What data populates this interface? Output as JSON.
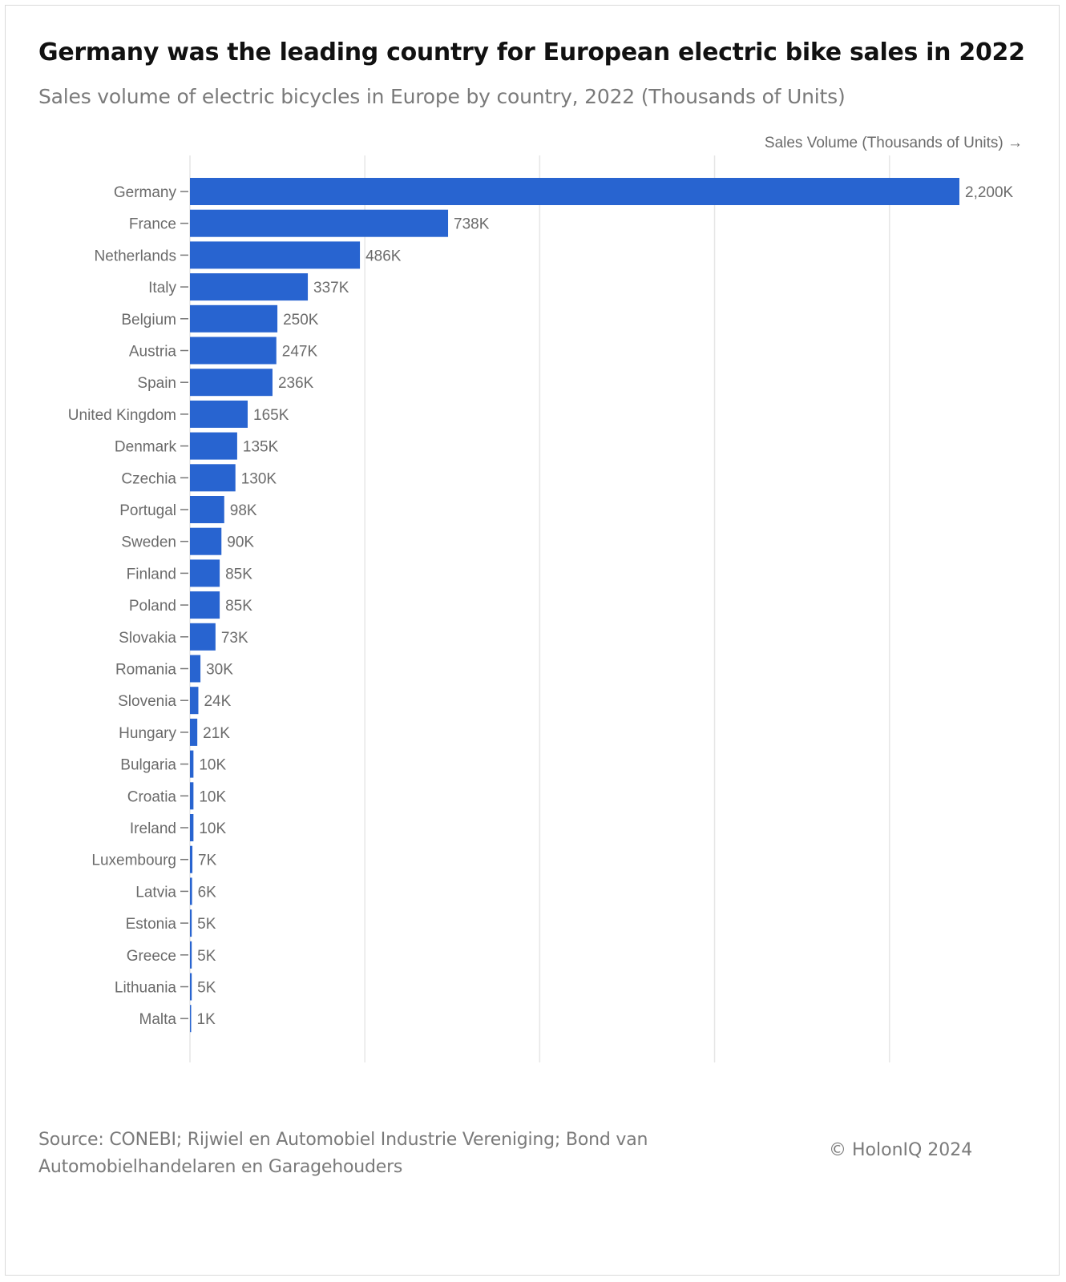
{
  "title": "Germany was the leading country for European electric bike sales in 2022",
  "subtitle": "Sales volume of electric bicycles in Europe by country, 2022 (Thousands of Units)",
  "source": "Source: CONEBI; Rijwiel en Automobiel Industrie Vereniging; Bond van Automobielhandelaren en Garagehouders",
  "credit": "© HolonIQ 2024",
  "colors": {
    "bar": "#2864d0",
    "grid": "#e6e6e6",
    "label": "#6b6b6b"
  },
  "chart_data": {
    "type": "bar",
    "orientation": "horizontal",
    "xlabel": "Sales Volume (Thousands of Units) →",
    "xlim": [
      0,
      2500
    ],
    "grid": true,
    "categories": [
      "Germany",
      "France",
      "Netherlands",
      "Italy",
      "Belgium",
      "Austria",
      "Spain",
      "United Kingdom",
      "Denmark",
      "Czechia",
      "Portugal",
      "Sweden",
      "Finland",
      "Poland",
      "Slovakia",
      "Romania",
      "Slovenia",
      "Hungary",
      "Bulgaria",
      "Croatia",
      "Ireland",
      "Luxembourg",
      "Latvia",
      "Estonia",
      "Greece",
      "Lithuania",
      "Malta"
    ],
    "values": [
      2200,
      738,
      486,
      337,
      250,
      247,
      236,
      165,
      135,
      130,
      98,
      90,
      85,
      85,
      73,
      30,
      24,
      21,
      10,
      10,
      10,
      7,
      6,
      5,
      5,
      5,
      1
    ],
    "data_labels": [
      "2,200K",
      "738K",
      "486K",
      "337K",
      "250K",
      "247K",
      "236K",
      "165K",
      "135K",
      "130K",
      "98K",
      "90K",
      "85K",
      "85K",
      "73K",
      "30K",
      "24K",
      "21K",
      "10K",
      "10K",
      "10K",
      "7K",
      "6K",
      "5K",
      "5K",
      "5K",
      "1K"
    ]
  }
}
